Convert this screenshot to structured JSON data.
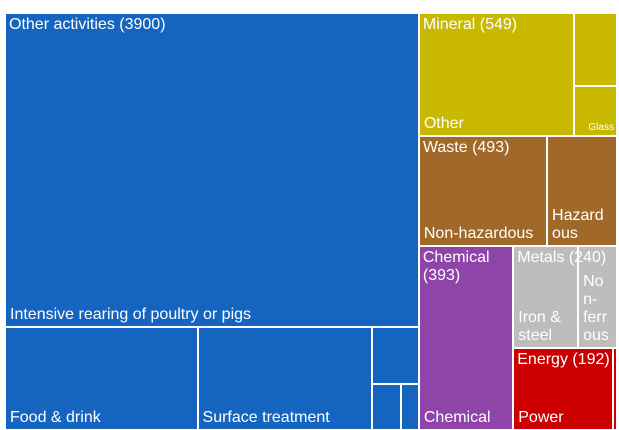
{
  "chart_data": {
    "type": "treemap",
    "groups": [
      {
        "name": "Other activities",
        "value": 3900,
        "value_label": "(3900)",
        "color": "#1565c0",
        "children": [
          {
            "name": "Intensive rearing of poultry or pigs",
            "value": 2937
          },
          {
            "name": "Food & drink",
            "value": 448
          },
          {
            "name": "Surface treatment",
            "value": 406
          },
          {
            "name": null,
            "value": 60
          },
          {
            "name": null,
            "value": 30
          },
          {
            "name": null,
            "value": 19
          }
        ]
      },
      {
        "name": "Mineral",
        "value": 549,
        "value_label": "(549)",
        "color": "#c9b800",
        "children": [
          {
            "name": "Other",
            "value": 431
          },
          {
            "name": null,
            "value": 70
          },
          {
            "name": "Glass",
            "value": 48
          }
        ]
      },
      {
        "name": "Waste",
        "value": 493,
        "value_label": "(493)",
        "color": "#a0692a",
        "children": [
          {
            "name": "Non-hazardous",
            "value": 319
          },
          {
            "name": "Hazardous",
            "value": 174
          }
        ]
      },
      {
        "name": "Chemical",
        "value": 393,
        "value_label": "(393)",
        "color": "#8e44a8",
        "children": [
          {
            "name": "Chemical",
            "value": 393
          }
        ]
      },
      {
        "name": "Metals",
        "value": 240,
        "value_label": "(240)",
        "color": "#bdbdbd",
        "children": [
          {
            "name": "Iron & steel",
            "value": 150
          },
          {
            "name": "Non-ferrous",
            "value": 90
          }
        ]
      },
      {
        "name": "Energy",
        "value": 192,
        "value_label": "(192)",
        "color": "#cc0000",
        "children": [
          {
            "name": "Power",
            "value": 185
          },
          {
            "name": null,
            "value": 7
          }
        ]
      }
    ]
  }
}
